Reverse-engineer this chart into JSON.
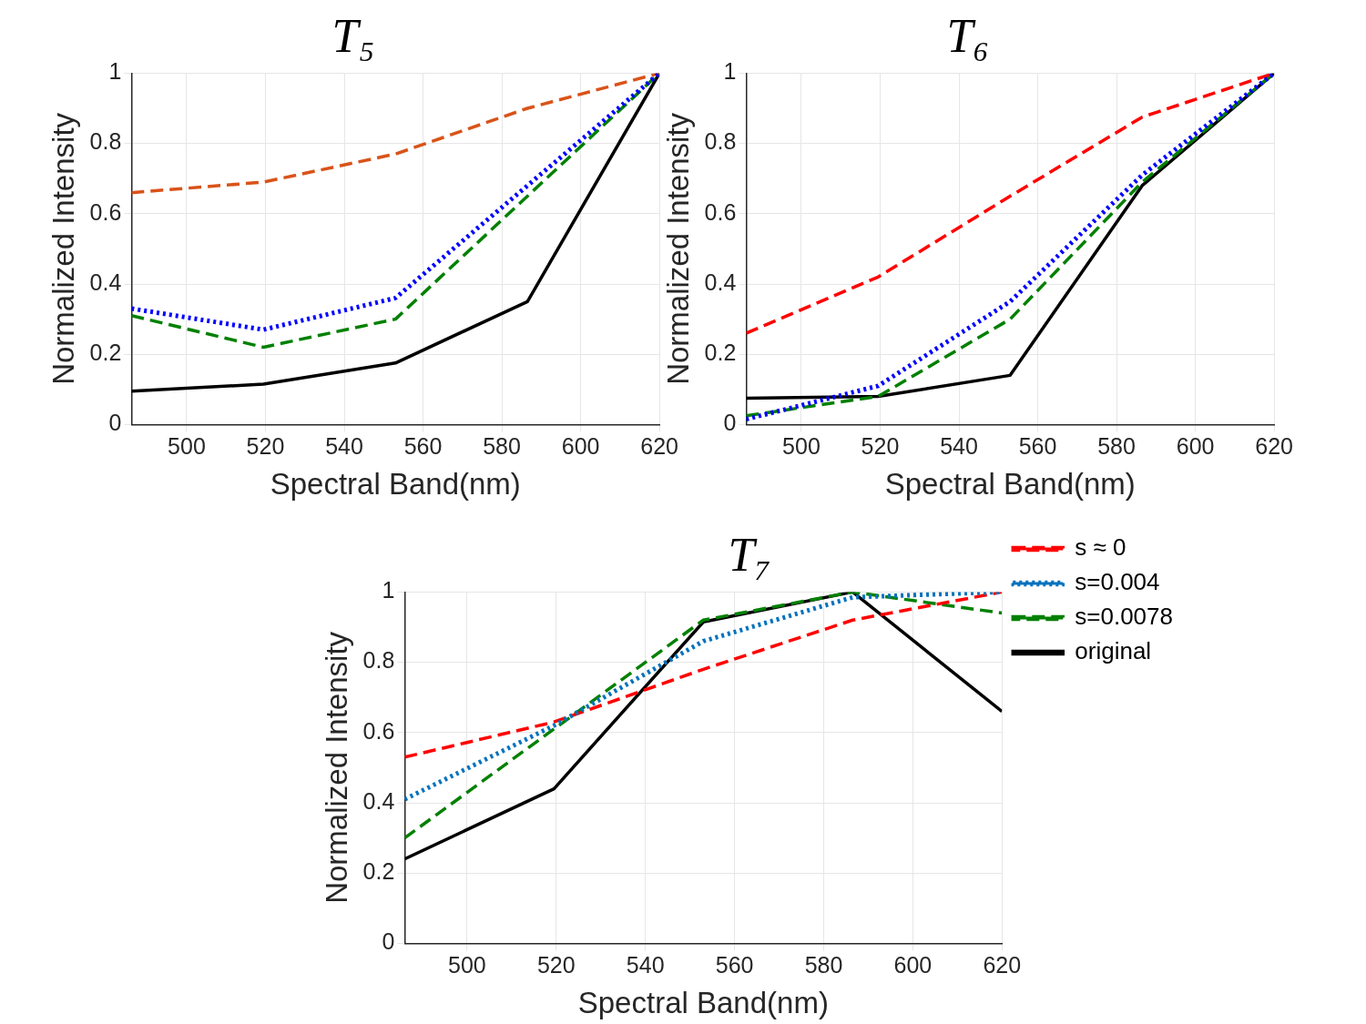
{
  "chart_data": [
    {
      "type": "line",
      "title": "T₅",
      "xlabel": "Spectral Band(nm)",
      "ylabel": "Normalized Intensity",
      "x": [
        486,
        519.5,
        553,
        586.5,
        620
      ],
      "xlim": [
        486,
        620
      ],
      "xticks": [
        500,
        520,
        540,
        560,
        580,
        600,
        620
      ],
      "ylim": [
        0,
        1
      ],
      "yticks": [
        0,
        0.2,
        0.4,
        0.6,
        0.8,
        1
      ],
      "grid": true,
      "legend": false,
      "marker": "none",
      "series": [
        {
          "color": "#d95319",
          "line_style": "dashed",
          "values": [
            0.66,
            0.69,
            0.77,
            0.9,
            1
          ]
        },
        {
          "color": "#0000ff",
          "line_style": "dotted",
          "values": [
            0.33,
            0.27,
            0.36,
            0.68,
            1
          ]
        },
        {
          "color": "#008000",
          "line_style": "dashed",
          "values": [
            0.31,
            0.22,
            0.3,
            0.65,
            1
          ]
        },
        {
          "color": "#000000",
          "line_style": "solid",
          "values": [
            0.095,
            0.115,
            0.175,
            0.35,
            1
          ]
        }
      ]
    },
    {
      "type": "line",
      "title": "T₆",
      "xlabel": "Spectral Band(nm)",
      "ylabel": "Normalized Intensity",
      "x": [
        486,
        519.5,
        553,
        586.5,
        620
      ],
      "xlim": [
        486,
        620
      ],
      "xticks": [
        500,
        520,
        540,
        560,
        580,
        600,
        620
      ],
      "ylim": [
        0,
        1
      ],
      "yticks": [
        0,
        0.2,
        0.4,
        0.6,
        0.8,
        1
      ],
      "grid": true,
      "legend": false,
      "marker": "none",
      "series": [
        {
          "color": "#ff0000",
          "line_style": "dashed",
          "values": [
            0.26,
            0.42,
            0.65,
            0.875,
            1
          ]
        },
        {
          "color": "#0000ff",
          "line_style": "dotted",
          "values": [
            0.015,
            0.11,
            0.35,
            0.71,
            1
          ]
        },
        {
          "color": "#008000",
          "line_style": "dashed",
          "values": [
            0.025,
            0.08,
            0.3,
            0.69,
            1
          ]
        },
        {
          "color": "#000000",
          "line_style": "solid",
          "values": [
            0.075,
            0.08,
            0.14,
            0.68,
            1
          ]
        }
      ]
    },
    {
      "type": "line",
      "title": "T₇",
      "xlabel": "Spectral Band(nm)",
      "ylabel": "Normalized Intensity",
      "x": [
        486,
        519.5,
        553,
        586.5,
        620
      ],
      "xlim": [
        486,
        620
      ],
      "xticks": [
        500,
        520,
        540,
        560,
        580,
        600,
        620
      ],
      "ylim": [
        0,
        1
      ],
      "yticks": [
        0,
        0.2,
        0.4,
        0.6,
        0.8,
        1
      ],
      "grid": true,
      "legend": "right",
      "marker": "none",
      "series": [
        {
          "name": "s ≈ 0",
          "color": "#ff0000",
          "line_style": "dashed",
          "values": [
            0.53,
            0.63,
            0.78,
            0.92,
            1
          ]
        },
        {
          "name": "s=0.004",
          "color": "#0072bd",
          "line_style": "dotted",
          "values": [
            0.41,
            0.62,
            0.86,
            0.985,
            1
          ]
        },
        {
          "name": "s=0.0078",
          "color": "#008000",
          "line_style": "dashed",
          "values": [
            0.3,
            0.61,
            0.92,
            1,
            0.94
          ]
        },
        {
          "name": "original",
          "color": "#000000",
          "line_style": "solid",
          "values": [
            0.24,
            0.44,
            0.915,
            1,
            0.66
          ]
        }
      ]
    }
  ]
}
